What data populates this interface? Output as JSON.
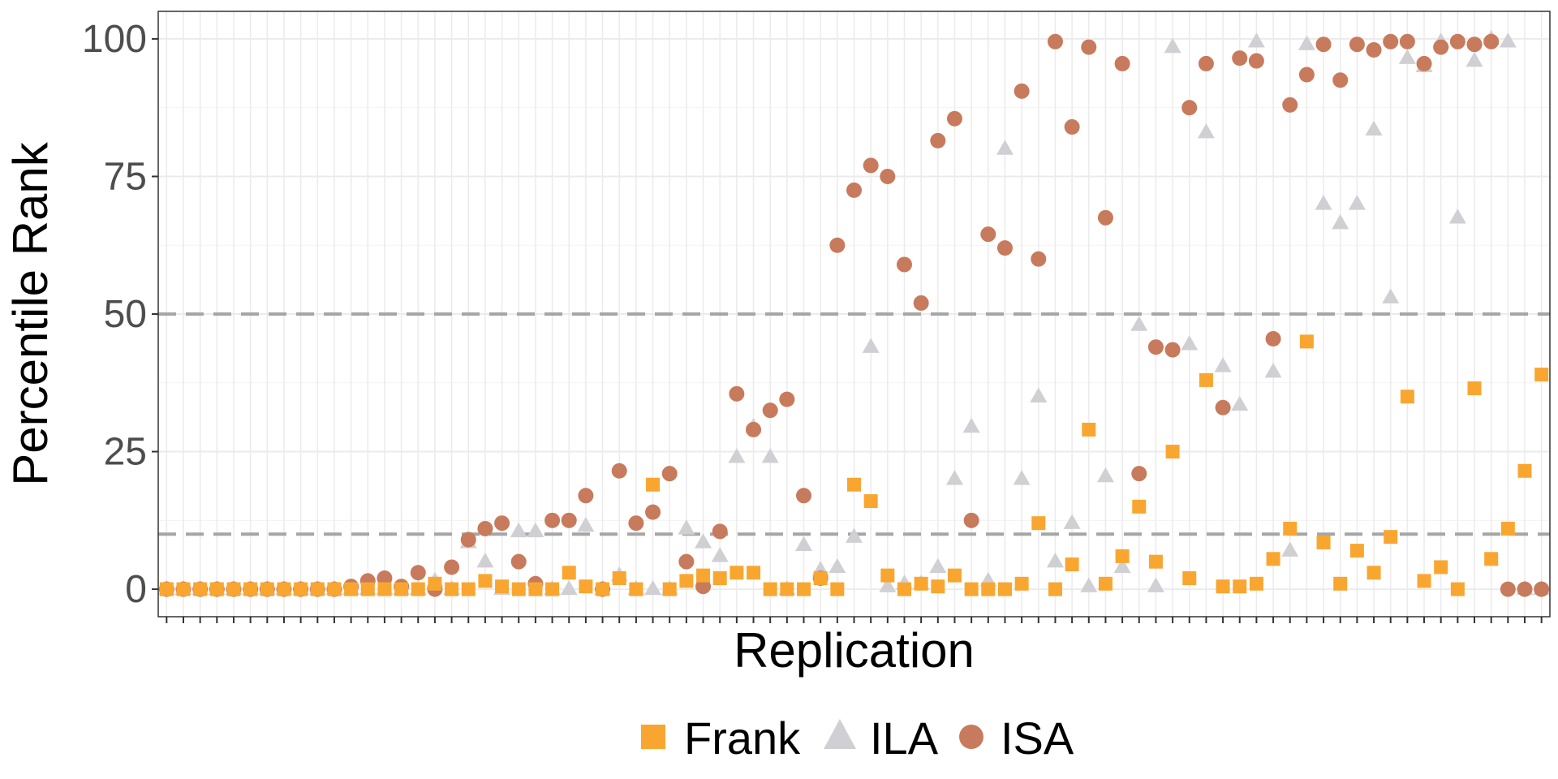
{
  "chart_data": {
    "type": "scatter",
    "title": "",
    "xlabel": "Replication",
    "ylabel": "Percentile Rank",
    "xlim": [
      0.5,
      83.5
    ],
    "ylim": [
      -5,
      105
    ],
    "y_ticks": [
      0,
      25,
      50,
      75,
      100
    ],
    "x_tick_labels_shown": false,
    "reference_lines": [
      10,
      50
    ],
    "grid": true,
    "legend_position": "bottom",
    "colors": {
      "Frank": "#F9A631",
      "ILA": "#D0D0D4",
      "ISA": "#C87A5C",
      "reference_line": "#A6A6A6"
    },
    "x": [
      1,
      2,
      3,
      4,
      5,
      6,
      7,
      8,
      9,
      10,
      11,
      12,
      13,
      14,
      15,
      16,
      17,
      18,
      19,
      20,
      21,
      22,
      23,
      24,
      25,
      26,
      27,
      28,
      29,
      30,
      31,
      32,
      33,
      34,
      35,
      36,
      37,
      38,
      39,
      40,
      41,
      42,
      43,
      44,
      45,
      46,
      47,
      48,
      49,
      50,
      51,
      52,
      53,
      54,
      55,
      56,
      57,
      58,
      59,
      60,
      61,
      62,
      63,
      64,
      65,
      66,
      67,
      68,
      69,
      70,
      71,
      72,
      73,
      74,
      75,
      76,
      77,
      78,
      79,
      80,
      81,
      82,
      83
    ],
    "series": [
      {
        "name": "Frank",
        "marker": "square",
        "values": [
          0,
          0,
          0,
          0,
          0,
          0,
          0,
          0,
          0,
          0,
          0,
          0,
          0,
          0,
          0,
          0,
          1,
          0,
          0,
          1.5,
          0.5,
          0,
          0,
          0,
          3,
          0.5,
          0,
          2,
          0,
          19,
          0,
          1.5,
          2.5,
          2,
          3,
          3,
          0,
          0,
          0,
          2,
          0,
          19,
          16,
          2.5,
          0,
          1,
          0.5,
          2.5,
          0,
          0,
          0,
          1,
          12,
          0,
          4.5,
          29,
          1,
          6,
          15,
          5,
          25,
          2,
          38,
          0.5,
          0.5,
          1,
          5.5,
          11,
          45,
          8.5,
          1,
          7,
          3,
          9.5,
          35,
          1.5,
          4,
          0,
          36.5,
          5.5,
          11,
          21.5,
          39
        ]
      },
      {
        "name": "ILA",
        "marker": "triangle",
        "values": [
          0,
          0,
          0,
          0,
          0,
          0,
          0,
          0,
          0,
          0,
          0,
          0,
          0,
          0,
          0,
          0,
          1.5,
          0,
          8.5,
          5,
          0,
          10.5,
          10.5,
          0,
          0,
          11.5,
          0,
          2.5,
          0,
          0,
          0,
          11,
          8.5,
          6,
          24,
          29.5,
          24,
          0,
          8,
          3.5,
          4,
          9.5,
          44,
          0.5,
          1,
          1,
          4,
          20,
          29.5,
          1.5,
          80,
          20,
          35,
          5,
          12,
          0.5,
          20.5,
          4,
          48,
          0.5,
          98.5,
          44.5,
          83,
          40.5,
          33.5,
          99.5,
          39.5,
          7,
          99,
          70,
          66.5,
          70,
          83.5,
          53,
          96.5,
          95,
          99.5,
          67.5,
          96,
          100,
          99.5,
          0,
          0
        ]
      },
      {
        "name": "ISA",
        "marker": "circle",
        "values": [
          0,
          0,
          0,
          0,
          0,
          0,
          0,
          0,
          0,
          0,
          0,
          0.5,
          1.5,
          2,
          0.5,
          3,
          0,
          4,
          9,
          11,
          12,
          5,
          1,
          12.5,
          12.5,
          17,
          0,
          21.5,
          12,
          14,
          21,
          5,
          0.5,
          10.5,
          35.5,
          29,
          32.5,
          34.5,
          17,
          2,
          62.5,
          72.5,
          77,
          75,
          59,
          52,
          81.5,
          85.5,
          12.5,
          64.5,
          62,
          90.5,
          60,
          99.5,
          84,
          98.5,
          67.5,
          95.5,
          21,
          44,
          43.5,
          87.5,
          95.5,
          33,
          96.5,
          96,
          45.5,
          88,
          93.5,
          99,
          92.5,
          99,
          98,
          99.5,
          99.5,
          95.5,
          98.5,
          99.5,
          99,
          99.5,
          0,
          0,
          0
        ]
      }
    ]
  }
}
